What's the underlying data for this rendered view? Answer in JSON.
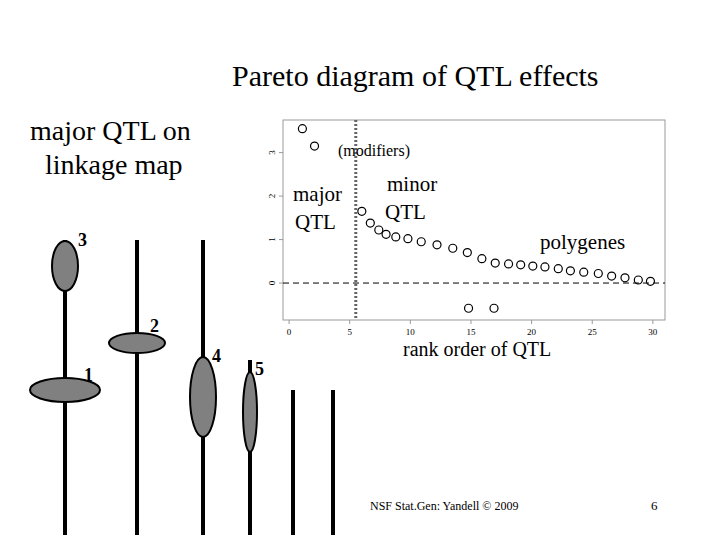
{
  "slide": {
    "title": "Pareto diagram of QTL effects",
    "map_title": [
      "major QTL on",
      "linkage map"
    ],
    "qtl_labels": [
      "3",
      "1",
      "2",
      "4",
      "5"
    ],
    "footer": "NSF Stat.Gen: Yandell © 2009",
    "page": "6"
  },
  "chart_data": {
    "type": "scatter",
    "x_label": "rank order of QTL",
    "annotations": {
      "modifiers": "(modifiers)",
      "major": [
        "major",
        "QTL"
      ],
      "minor": [
        "minor",
        "QTL"
      ],
      "polygenes": "polygenes"
    },
    "x": [
      1.1,
      2.1,
      6.0,
      6.7,
      7.4,
      8.0,
      8.8,
      9.8,
      10.9,
      12.2,
      13.5,
      14.7,
      15.9,
      17.0,
      18.1,
      19.1,
      20.1,
      21.1,
      22.2,
      23.2,
      24.3,
      25.5,
      26.6,
      27.7,
      28.8,
      29.8,
      14.8,
      16.9
    ],
    "values": [
      3.55,
      3.15,
      1.65,
      1.38,
      1.22,
      1.12,
      1.06,
      1.02,
      0.95,
      0.88,
      0.8,
      0.7,
      0.56,
      0.46,
      0.44,
      0.42,
      0.39,
      0.37,
      0.33,
      0.28,
      0.25,
      0.22,
      0.16,
      0.12,
      0.07,
      0.04,
      -0.58,
      -0.58
    ],
    "marker": "circle",
    "color": "#000000",
    "reference_lines": {
      "x": 5.5,
      "y": 0
    },
    "xlim": [
      -0.5,
      31
    ],
    "xticks": [
      0,
      5,
      10,
      15,
      20,
      25,
      30
    ],
    "ylim": [
      -0.85,
      3.75
    ],
    "yticks": [
      0,
      1,
      2,
      3
    ],
    "grid": false
  }
}
